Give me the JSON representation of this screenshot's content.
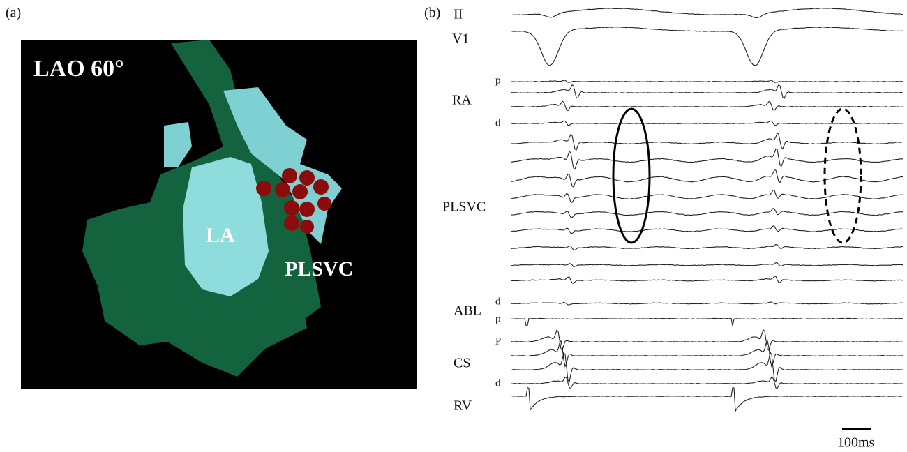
{
  "panel_a": {
    "label": "(a)",
    "view": "LAO 60°",
    "structures": [
      "LA",
      "PLSVC"
    ]
  },
  "panel_b": {
    "label": "(b)",
    "channels": [
      "II",
      "V1",
      "RA",
      "PLSVC",
      "ABL",
      "CS",
      "RV"
    ],
    "poles": {
      "ra_proximal": "p",
      "ra_distal": "d",
      "abl_distal": "d",
      "abl_proximal": "p",
      "cs_proximal": "P",
      "cs_distal": "d"
    },
    "scale_bar": "100ms"
  }
}
